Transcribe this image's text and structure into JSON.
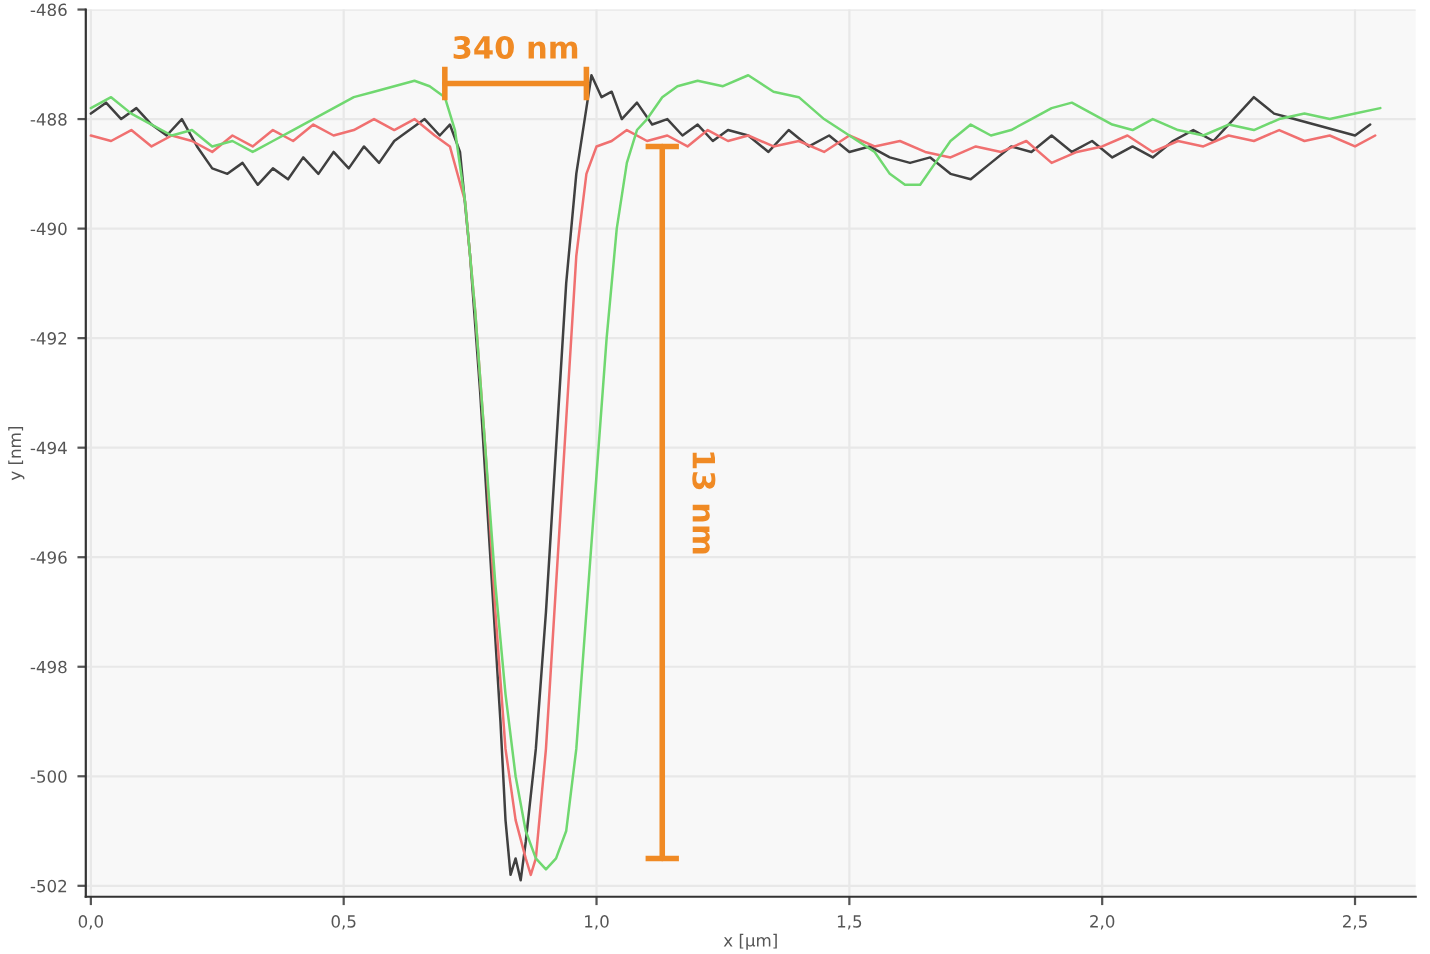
{
  "chart_data": {
    "type": "line",
    "xlabel": "x [µm]",
    "ylabel": "y [nm]",
    "xlim": [
      -0.01,
      2.62
    ],
    "ylim": [
      -502.2,
      -486
    ],
    "xticks": [
      {
        "value": 0,
        "label": "0,0"
      },
      {
        "value": 0.5,
        "label": "0,5"
      },
      {
        "value": 1,
        "label": "1,0"
      },
      {
        "value": 1.5,
        "label": "1,5"
      },
      {
        "value": 2,
        "label": "2,0"
      },
      {
        "value": 2.5,
        "label": "2,5"
      }
    ],
    "yticks": [
      -502,
      -500,
      -498,
      -496,
      -494,
      -492,
      -490,
      -488,
      -486
    ],
    "grid": true,
    "marker": "none",
    "line_style": "solid",
    "series": [
      {
        "color": "#404040",
        "x": [
          0.0,
          0.03,
          0.06,
          0.09,
          0.12,
          0.15,
          0.18,
          0.21,
          0.24,
          0.27,
          0.3,
          0.33,
          0.36,
          0.39,
          0.42,
          0.45,
          0.48,
          0.51,
          0.54,
          0.57,
          0.6,
          0.63,
          0.66,
          0.69,
          0.71,
          0.73,
          0.75,
          0.77,
          0.79,
          0.81,
          0.82,
          0.83,
          0.84,
          0.85,
          0.86,
          0.88,
          0.9,
          0.92,
          0.94,
          0.96,
          0.98,
          0.99,
          1.01,
          1.03,
          1.05,
          1.08,
          1.11,
          1.14,
          1.17,
          1.2,
          1.23,
          1.26,
          1.3,
          1.34,
          1.38,
          1.42,
          1.46,
          1.5,
          1.54,
          1.58,
          1.62,
          1.66,
          1.7,
          1.74,
          1.78,
          1.82,
          1.86,
          1.9,
          1.94,
          1.98,
          2.02,
          2.06,
          2.1,
          2.14,
          2.18,
          2.22,
          2.26,
          2.3,
          2.34,
          2.38,
          2.42,
          2.46,
          2.5,
          2.53
        ],
        "values": [
          -487.9,
          -487.7,
          -488.0,
          -487.8,
          -488.1,
          -488.3,
          -488.0,
          -488.5,
          -488.9,
          -489.0,
          -488.8,
          -489.2,
          -488.9,
          -489.1,
          -488.7,
          -489.0,
          -488.6,
          -488.9,
          -488.5,
          -488.8,
          -488.4,
          -488.2,
          -488.0,
          -488.3,
          -488.1,
          -488.6,
          -490.5,
          -493.0,
          -496.0,
          -499.0,
          -500.8,
          -501.8,
          -501.5,
          -501.9,
          -501.2,
          -499.5,
          -497.0,
          -494.0,
          -491.0,
          -489.0,
          -487.8,
          -487.2,
          -487.6,
          -487.5,
          -488.0,
          -487.7,
          -488.1,
          -488.0,
          -488.3,
          -488.1,
          -488.4,
          -488.2,
          -488.3,
          -488.6,
          -488.2,
          -488.5,
          -488.3,
          -488.6,
          -488.5,
          -488.7,
          -488.8,
          -488.7,
          -489.0,
          -489.1,
          -488.8,
          -488.5,
          -488.6,
          -488.3,
          -488.6,
          -488.4,
          -488.7,
          -488.5,
          -488.7,
          -488.4,
          -488.2,
          -488.4,
          -488.0,
          -487.6,
          -487.9,
          -488.0,
          -488.1,
          -488.2,
          -488.3,
          -488.1
        ]
      },
      {
        "color": "#f07070",
        "x": [
          0.0,
          0.04,
          0.08,
          0.12,
          0.16,
          0.2,
          0.24,
          0.28,
          0.32,
          0.36,
          0.4,
          0.44,
          0.48,
          0.52,
          0.56,
          0.6,
          0.64,
          0.68,
          0.71,
          0.74,
          0.76,
          0.78,
          0.8,
          0.82,
          0.84,
          0.86,
          0.87,
          0.88,
          0.9,
          0.92,
          0.94,
          0.96,
          0.98,
          1.0,
          1.03,
          1.06,
          1.1,
          1.14,
          1.18,
          1.22,
          1.26,
          1.3,
          1.35,
          1.4,
          1.45,
          1.5,
          1.55,
          1.6,
          1.65,
          1.7,
          1.75,
          1.8,
          1.85,
          1.9,
          1.95,
          2.0,
          2.05,
          2.1,
          2.15,
          2.2,
          2.25,
          2.3,
          2.35,
          2.4,
          2.45,
          2.5,
          2.54
        ],
        "values": [
          -488.3,
          -488.4,
          -488.2,
          -488.5,
          -488.3,
          -488.4,
          -488.6,
          -488.3,
          -488.5,
          -488.2,
          -488.4,
          -488.1,
          -488.3,
          -488.2,
          -488.0,
          -488.2,
          -488.0,
          -488.3,
          -488.5,
          -489.5,
          -491.5,
          -494.0,
          -497.0,
          -499.5,
          -500.8,
          -501.5,
          -501.8,
          -501.5,
          -499.5,
          -496.5,
          -493.5,
          -490.5,
          -489.0,
          -488.5,
          -488.4,
          -488.2,
          -488.4,
          -488.3,
          -488.5,
          -488.2,
          -488.4,
          -488.3,
          -488.5,
          -488.4,
          -488.6,
          -488.3,
          -488.5,
          -488.4,
          -488.6,
          -488.7,
          -488.5,
          -488.6,
          -488.4,
          -488.8,
          -488.6,
          -488.5,
          -488.3,
          -488.6,
          -488.4,
          -488.5,
          -488.3,
          -488.4,
          -488.2,
          -488.4,
          -488.3,
          -488.5,
          -488.3
        ]
      },
      {
        "color": "#70d870",
        "x": [
          0.0,
          0.04,
          0.08,
          0.12,
          0.16,
          0.2,
          0.24,
          0.28,
          0.32,
          0.36,
          0.4,
          0.44,
          0.48,
          0.52,
          0.56,
          0.6,
          0.64,
          0.67,
          0.7,
          0.72,
          0.74,
          0.76,
          0.78,
          0.8,
          0.82,
          0.84,
          0.86,
          0.88,
          0.9,
          0.92,
          0.94,
          0.96,
          0.98,
          1.0,
          1.02,
          1.04,
          1.06,
          1.08,
          1.1,
          1.13,
          1.16,
          1.2,
          1.25,
          1.3,
          1.35,
          1.4,
          1.45,
          1.5,
          1.55,
          1.58,
          1.61,
          1.64,
          1.67,
          1.7,
          1.74,
          1.78,
          1.82,
          1.86,
          1.9,
          1.94,
          1.98,
          2.02,
          2.06,
          2.1,
          2.15,
          2.2,
          2.25,
          2.3,
          2.35,
          2.4,
          2.45,
          2.5,
          2.55
        ],
        "values": [
          -487.8,
          -487.6,
          -487.9,
          -488.1,
          -488.3,
          -488.2,
          -488.5,
          -488.4,
          -488.6,
          -488.4,
          -488.2,
          -488.0,
          -487.8,
          -487.6,
          -487.5,
          -487.4,
          -487.3,
          -487.4,
          -487.6,
          -488.2,
          -489.5,
          -491.5,
          -494.0,
          -496.5,
          -498.5,
          -500.0,
          -501.0,
          -501.5,
          -501.7,
          -501.5,
          -501.0,
          -499.5,
          -497.0,
          -494.5,
          -492.0,
          -490.0,
          -488.8,
          -488.2,
          -488.0,
          -487.6,
          -487.4,
          -487.3,
          -487.4,
          -487.2,
          -487.5,
          -487.6,
          -488.0,
          -488.3,
          -488.6,
          -489.0,
          -489.2,
          -489.2,
          -488.8,
          -488.4,
          -488.1,
          -488.3,
          -488.2,
          -488.0,
          -487.8,
          -487.7,
          -487.9,
          -488.1,
          -488.2,
          -488.0,
          -488.2,
          -488.3,
          -488.1,
          -488.2,
          -488.0,
          -487.9,
          -488.0,
          -487.9,
          -487.8
        ]
      },
      {
        "type": "line",
        "color": "#f08a24",
        "x": [
          0.7,
          0.98
        ],
        "values": [
          -487.35,
          -487.35
        ]
      },
      {
        "type": "line",
        "color": "#f08a24",
        "x": [
          1.13,
          1.13
        ],
        "values": [
          -488.5,
          -501.5
        ]
      }
    ],
    "annotations": [
      "340 nm",
      "13 nm"
    ]
  }
}
